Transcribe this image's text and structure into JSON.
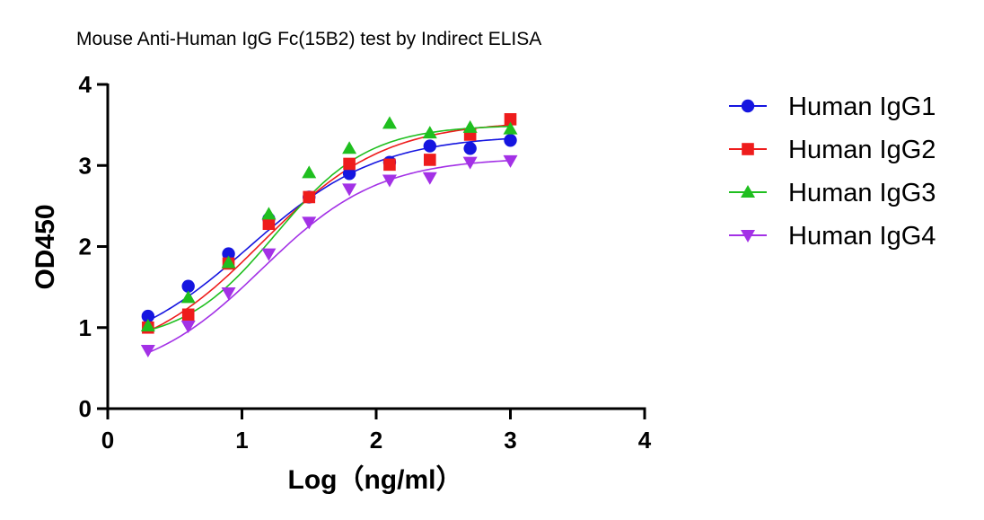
{
  "chart_data": {
    "type": "scatter",
    "title": "Mouse Anti-Human IgG Fc(15B2) test by Indirect ELISA",
    "xlabel": "Log（ng/ml）",
    "ylabel": "OD450",
    "xlim": [
      0,
      4
    ],
    "ylim": [
      0,
      4
    ],
    "xticks": [
      "0",
      "1",
      "2",
      "3",
      "4"
    ],
    "yticks": [
      "0",
      "1",
      "2",
      "3",
      "4"
    ],
    "legend_position": "right",
    "grid": false,
    "x": [
      0.3,
      0.6,
      0.9,
      1.2,
      1.5,
      1.8,
      2.1,
      2.4,
      2.7,
      3.0
    ],
    "series": [
      {
        "name": "Human IgG1",
        "color": "#1515e0",
        "marker": "circle",
        "values": [
          1.14,
          1.51,
          1.91,
          2.34,
          2.61,
          2.9,
          3.04,
          3.24,
          3.21,
          3.31
        ],
        "fit": [
          0.6,
          3.38,
          1.05,
          0.9
        ]
      },
      {
        "name": "Human IgG2",
        "color": "#ee1c1c",
        "marker": "square",
        "values": [
          1.0,
          1.16,
          1.79,
          2.28,
          2.61,
          3.02,
          3.01,
          3.07,
          3.38,
          3.57
        ],
        "fit": [
          0.55,
          3.55,
          1.15,
          0.95
        ]
      },
      {
        "name": "Human IgG3",
        "color": "#1fbf1f",
        "marker": "triangle-up",
        "values": [
          1.02,
          1.37,
          1.8,
          2.4,
          2.91,
          3.21,
          3.52,
          3.4,
          3.47,
          3.45
        ],
        "fit": [
          0.8,
          3.5,
          1.25,
          1.25
        ]
      },
      {
        "name": "Human IgG4",
        "color": "#a331e6",
        "marker": "triangle-down",
        "values": [
          0.72,
          1.02,
          1.43,
          1.91,
          2.3,
          2.71,
          2.82,
          2.85,
          3.04,
          3.06
        ],
        "fit": [
          0.35,
          3.1,
          1.15,
          1.0
        ]
      }
    ]
  }
}
